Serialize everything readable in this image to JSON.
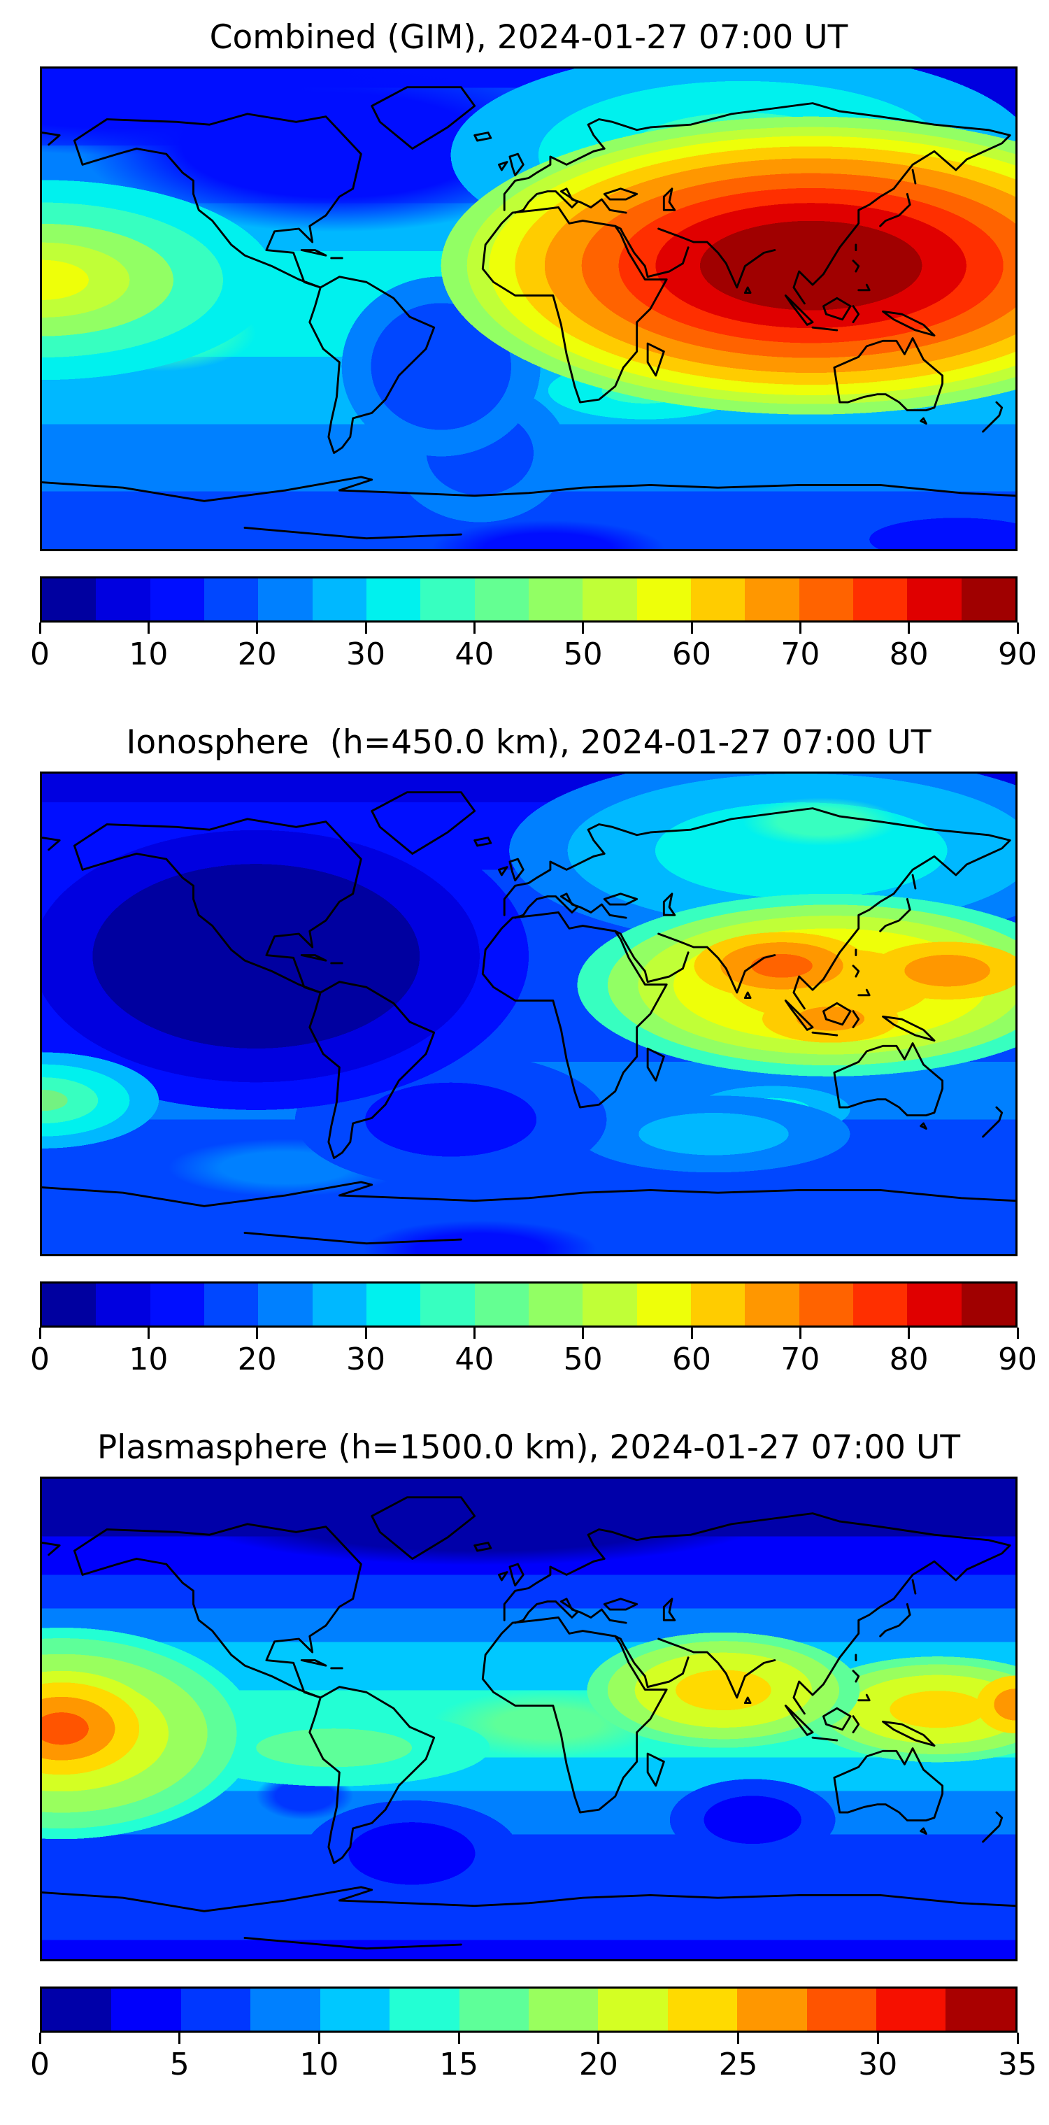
{
  "page": {
    "background_color": "#ffffff",
    "description": "Three stacked world maps of total electron content (filled contour plots with coastlines) each with a horizontal jet colorbar"
  },
  "chart_data": [
    {
      "type": "heatmap",
      "subtype": "filled_contour_world_map",
      "title": "Combined (GIM), 2024-01-27 07:00 UT",
      "projection": "equirectangular, lon -180..180, lat -90..90, grid off",
      "colormap": "jet",
      "colorbar": {
        "min": 0,
        "max": 90,
        "tick_step": 10,
        "ticks": [
          "0",
          "10",
          "20",
          "30",
          "40",
          "50",
          "60",
          "70",
          "80",
          "90"
        ],
        "n_segments": 18,
        "segment_width_value": 5,
        "segment_colors": [
          "#0000a0",
          "#0000e0",
          "#000eff",
          "#0047ff",
          "#0080ff",
          "#00b8ff",
          "#00f1ee",
          "#37ffc0",
          "#64ff92",
          "#92ff64",
          "#c0ff37",
          "#eeff09",
          "#ffcc00",
          "#ff9700",
          "#ff6300",
          "#ff2f00",
          "#e00000",
          "#a00000"
        ],
        "orientation": "horizontal",
        "position": "below map"
      },
      "features": [
        {
          "label": "absolute maximum over South/Southeast Asia (India to west Pacific)",
          "approx_lon_lat": [
            105,
            8
          ],
          "approx_value": 88
        },
        {
          "label": "secondary maximum in central Pacific at left map edge",
          "approx_lon_lat": [
            -178,
            -5
          ],
          "approx_value": 62
        },
        {
          "label": "warm cyan-green daytime region over Siberia/East Asia",
          "approx_lon_lat": [
            80,
            55
          ],
          "approx_value": 35
        },
        {
          "label": "minimum over high-latitude North America / North Atlantic",
          "approx_lon_lat": [
            -60,
            70
          ],
          "approx_value": 8
        },
        {
          "label": "cool blue band along Antarctic coast",
          "approx_lon_lat": [
            0,
            -75
          ],
          "approx_value": 15
        }
      ]
    },
    {
      "type": "heatmap",
      "subtype": "filled_contour_world_map",
      "title": "Ionosphere  (h=450.0 km), 2024-01-27 07:00 UT",
      "projection": "equirectangular, lon -180..180, lat -90..90, grid off",
      "colormap": "jet",
      "colorbar": {
        "min": 0,
        "max": 90,
        "tick_step": 10,
        "ticks": [
          "0",
          "10",
          "20",
          "30",
          "40",
          "50",
          "60",
          "70",
          "80",
          "90"
        ],
        "n_segments": 18,
        "segment_width_value": 5,
        "segment_colors": [
          "#0000a0",
          "#0000e0",
          "#000eff",
          "#0047ff",
          "#0080ff",
          "#00b8ff",
          "#00f1ee",
          "#37ffc0",
          "#64ff92",
          "#92ff64",
          "#c0ff37",
          "#eeff09",
          "#ffcc00",
          "#ff9700",
          "#ff6300",
          "#ff2f00",
          "#e00000",
          "#a00000"
        ],
        "orientation": "horizontal",
        "position": "below map"
      },
      "features": [
        {
          "label": "maximum over India / Indochina / Indonesia",
          "approx_lon_lat": [
            100,
            10
          ],
          "approx_value": 72
        },
        {
          "label": "secondary orange lobe east of Philippines",
          "approx_lon_lat": [
            155,
            8
          ],
          "approx_value": 62
        },
        {
          "label": "deep nightside minimum over the Americas and Atlantic",
          "approx_lon_lat": [
            -100,
            10
          ],
          "approx_value": 3
        },
        {
          "label": "cyan daytime region over central/east Asia",
          "approx_lon_lat": [
            85,
            50
          ],
          "approx_value": 32
        },
        {
          "label": "green-cyan patch in equatorial Pacific at left edge",
          "approx_lon_lat": [
            -178,
            -25
          ],
          "approx_value": 40
        }
      ]
    },
    {
      "type": "heatmap",
      "subtype": "filled_contour_world_map",
      "title": "Plasmasphere (h=1500.0 km), 2024-01-27 07:00 UT",
      "projection": "equirectangular, lon -180..180, lat -90..90, grid off",
      "colormap": "jet",
      "colorbar": {
        "min": 0,
        "max": 35,
        "tick_step": 5,
        "ticks": [
          "0",
          "5",
          "10",
          "15",
          "20",
          "25",
          "30",
          "35"
        ],
        "n_segments": 14,
        "segment_width_value": 2.5,
        "segment_colors": [
          "#0000a9",
          "#0000fc",
          "#0037ff",
          "#0080ff",
          "#00c8ff",
          "#23ffd4",
          "#5eff99",
          "#99ff5e",
          "#d4ff23",
          "#ffda00",
          "#ff9700",
          "#ff5400",
          "#f61000",
          "#a90000"
        ],
        "orientation": "horizontal",
        "position": "below map"
      },
      "features": [
        {
          "label": "maximum in eastern Pacific at left map edge",
          "approx_lon_lat": [
            -176,
            -4
          ],
          "approx_value": 30
        },
        {
          "label": "yellow maximum over Arabian Sea / India",
          "approx_lon_lat": [
            70,
            5
          ],
          "approx_value": 25
        },
        {
          "label": "yellow band over Indonesia / north Australia extending to right edge",
          "approx_lon_lat": [
            150,
            0
          ],
          "approx_value": 25
        },
        {
          "label": "dark navy band at high northern latitudes",
          "approx_lon_lat": [
            0,
            75
          ],
          "approx_value": 3
        },
        {
          "label": "dark blue cells in southern mid-latitude ocean",
          "approx_lon_lat": [
            -65,
            -50
          ],
          "approx_value": 7
        }
      ]
    }
  ]
}
